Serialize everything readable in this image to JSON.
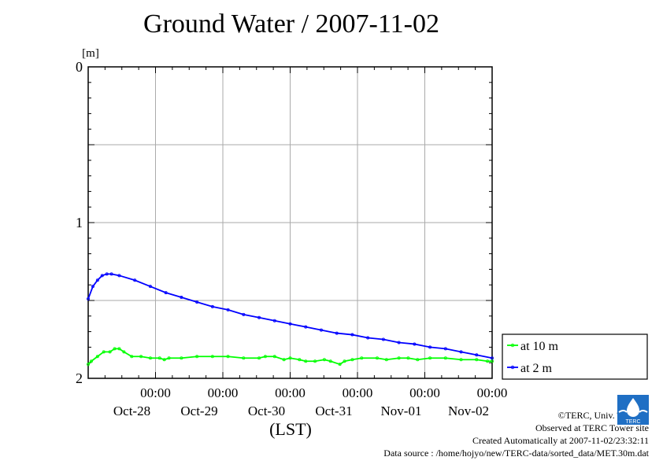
{
  "chart_data": {
    "type": "line",
    "title": "Ground Water / 2007-11-02",
    "ylabel": "[m]",
    "xlabel": "(LST)",
    "ylim": [
      0,
      2
    ],
    "y_inverted": true,
    "y_ticks": [
      "0",
      "1",
      "2"
    ],
    "x_range": [
      "2007-10-27 00:00",
      "2007-11-02 24:00"
    ],
    "x_ticks": [
      {
        "time": "00:00",
        "date": "Oct-28"
      },
      {
        "time": "00:00",
        "date": "Oct-29"
      },
      {
        "time": "00:00",
        "date": "Oct-30"
      },
      {
        "time": "00:00",
        "date": "Oct-31"
      },
      {
        "time": "00:00",
        "date": "Nov-01"
      },
      {
        "time": "00:00",
        "date": "Nov-02"
      }
    ],
    "grid": true,
    "legend": "right",
    "series": [
      {
        "name": "at 10 m",
        "color": "#00ff00",
        "points": [
          [
            0.0,
            1.91
          ],
          [
            0.1,
            1.89
          ],
          [
            0.3,
            1.86
          ],
          [
            0.5,
            1.83
          ],
          [
            0.7,
            1.83
          ],
          [
            0.85,
            1.81
          ],
          [
            1.0,
            1.81
          ],
          [
            1.15,
            1.83
          ],
          [
            1.4,
            1.86
          ],
          [
            1.7,
            1.86
          ],
          [
            2.0,
            1.87
          ],
          [
            2.3,
            1.87
          ],
          [
            2.45,
            1.88
          ],
          [
            2.6,
            1.87
          ],
          [
            3.0,
            1.87
          ],
          [
            3.5,
            1.86
          ],
          [
            4.0,
            1.86
          ],
          [
            4.5,
            1.86
          ],
          [
            5.0,
            1.87
          ],
          [
            5.5,
            1.87
          ],
          [
            5.7,
            1.86
          ],
          [
            6.0,
            1.86
          ],
          [
            6.3,
            1.88
          ],
          [
            6.5,
            1.87
          ],
          [
            6.8,
            1.88
          ],
          [
            7.0,
            1.89
          ],
          [
            7.3,
            1.89
          ],
          [
            7.6,
            1.88
          ],
          [
            7.8,
            1.89
          ],
          [
            8.1,
            1.91
          ],
          [
            8.25,
            1.89
          ],
          [
            8.5,
            1.88
          ],
          [
            8.8,
            1.87
          ],
          [
            9.3,
            1.87
          ],
          [
            9.6,
            1.88
          ],
          [
            10.0,
            1.87
          ],
          [
            10.3,
            1.87
          ],
          [
            10.6,
            1.88
          ],
          [
            11.0,
            1.87
          ],
          [
            11.5,
            1.87
          ],
          [
            12.0,
            1.88
          ],
          [
            12.5,
            1.88
          ],
          [
            12.85,
            1.89
          ],
          [
            13.0,
            1.89
          ]
        ]
      },
      {
        "name": "at 2 m",
        "color": "#0000ff",
        "points": [
          [
            0.0,
            1.49
          ],
          [
            0.15,
            1.41
          ],
          [
            0.3,
            1.37
          ],
          [
            0.45,
            1.34
          ],
          [
            0.6,
            1.33
          ],
          [
            0.75,
            1.33
          ],
          [
            1.0,
            1.34
          ],
          [
            1.5,
            1.37
          ],
          [
            2.0,
            1.41
          ],
          [
            2.5,
            1.45
          ],
          [
            3.0,
            1.48
          ],
          [
            3.5,
            1.51
          ],
          [
            4.0,
            1.54
          ],
          [
            4.5,
            1.56
          ],
          [
            5.0,
            1.59
          ],
          [
            5.5,
            1.61
          ],
          [
            6.0,
            1.63
          ],
          [
            6.5,
            1.65
          ],
          [
            7.0,
            1.67
          ],
          [
            7.5,
            1.69
          ],
          [
            8.0,
            1.71
          ],
          [
            8.5,
            1.72
          ],
          [
            9.0,
            1.74
          ],
          [
            9.5,
            1.75
          ],
          [
            10.0,
            1.77
          ],
          [
            10.5,
            1.78
          ],
          [
            11.0,
            1.8
          ],
          [
            11.5,
            1.81
          ],
          [
            12.0,
            1.83
          ],
          [
            12.5,
            1.85
          ],
          [
            13.0,
            1.87
          ]
        ]
      }
    ]
  },
  "credits": {
    "copyright": "©TERC, Univ. Tsukuba",
    "observed": "Observed at TERC Tower site",
    "created": "Created Automatically at 2007-11-02/23:32:11",
    "source": "Data source : /home/hojyo/new/TERC-data/sorted_data/MET.30m.dat"
  },
  "logo_text": "TERC",
  "colors": {
    "grid": "#aaaaaa",
    "frame": "#000000",
    "background": "#ffffff"
  }
}
